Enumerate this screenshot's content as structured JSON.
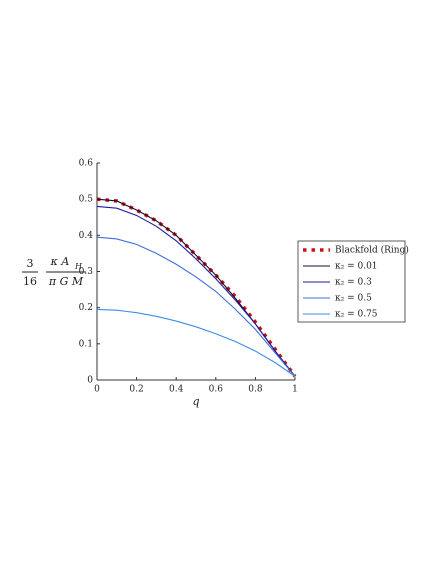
{
  "chart_data": {
    "type": "line",
    "xlabel": "q",
    "ylabel": {
      "coef_num": "3",
      "coef_den": "16",
      "num": "κ A",
      "num_sub": "H",
      "den": "π G M"
    },
    "x": [
      0,
      0.1,
      0.2,
      0.3,
      0.4,
      0.5,
      0.6,
      0.7,
      0.8,
      0.9,
      1
    ],
    "series": [
      {
        "name": "Blackfold (Ring)",
        "color": "#d01010",
        "style": "dotted",
        "values": [
          0.5,
          0.495,
          0.47,
          0.44,
          0.4,
          0.345,
          0.29,
          0.23,
          0.16,
          0.085,
          0.01
        ]
      },
      {
        "name": "κ₂ = 0.01",
        "color": "#111133",
        "style": "solid",
        "values": [
          0.5,
          0.495,
          0.47,
          0.44,
          0.4,
          0.345,
          0.29,
          0.225,
          0.155,
          0.08,
          0.01
        ]
      },
      {
        "name": "κ₂ = 0.3",
        "color": "#1a1aa0",
        "style": "solid",
        "values": [
          0.48,
          0.475,
          0.455,
          0.425,
          0.385,
          0.335,
          0.28,
          0.22,
          0.155,
          0.08,
          0.01
        ]
      },
      {
        "name": "κ₂ = 0.5",
        "color": "#3f6fd8",
        "style": "solid",
        "values": [
          0.395,
          0.39,
          0.375,
          0.35,
          0.32,
          0.285,
          0.245,
          0.195,
          0.14,
          0.075,
          0.01
        ]
      },
      {
        "name": "κ₂ = 0.75",
        "color": "#3a8ee8",
        "style": "solid",
        "values": [
          0.195,
          0.193,
          0.186,
          0.176,
          0.163,
          0.147,
          0.128,
          0.106,
          0.08,
          0.048,
          0.01
        ]
      }
    ],
    "xlim": [
      0,
      1
    ],
    "xticks": [
      0,
      0.2,
      0.4,
      0.6,
      0.8,
      1
    ],
    "ylim": [
      0,
      0.6
    ],
    "yticks": [
      0,
      0.1,
      0.2,
      0.3,
      0.4,
      0.5,
      0.6
    ]
  }
}
